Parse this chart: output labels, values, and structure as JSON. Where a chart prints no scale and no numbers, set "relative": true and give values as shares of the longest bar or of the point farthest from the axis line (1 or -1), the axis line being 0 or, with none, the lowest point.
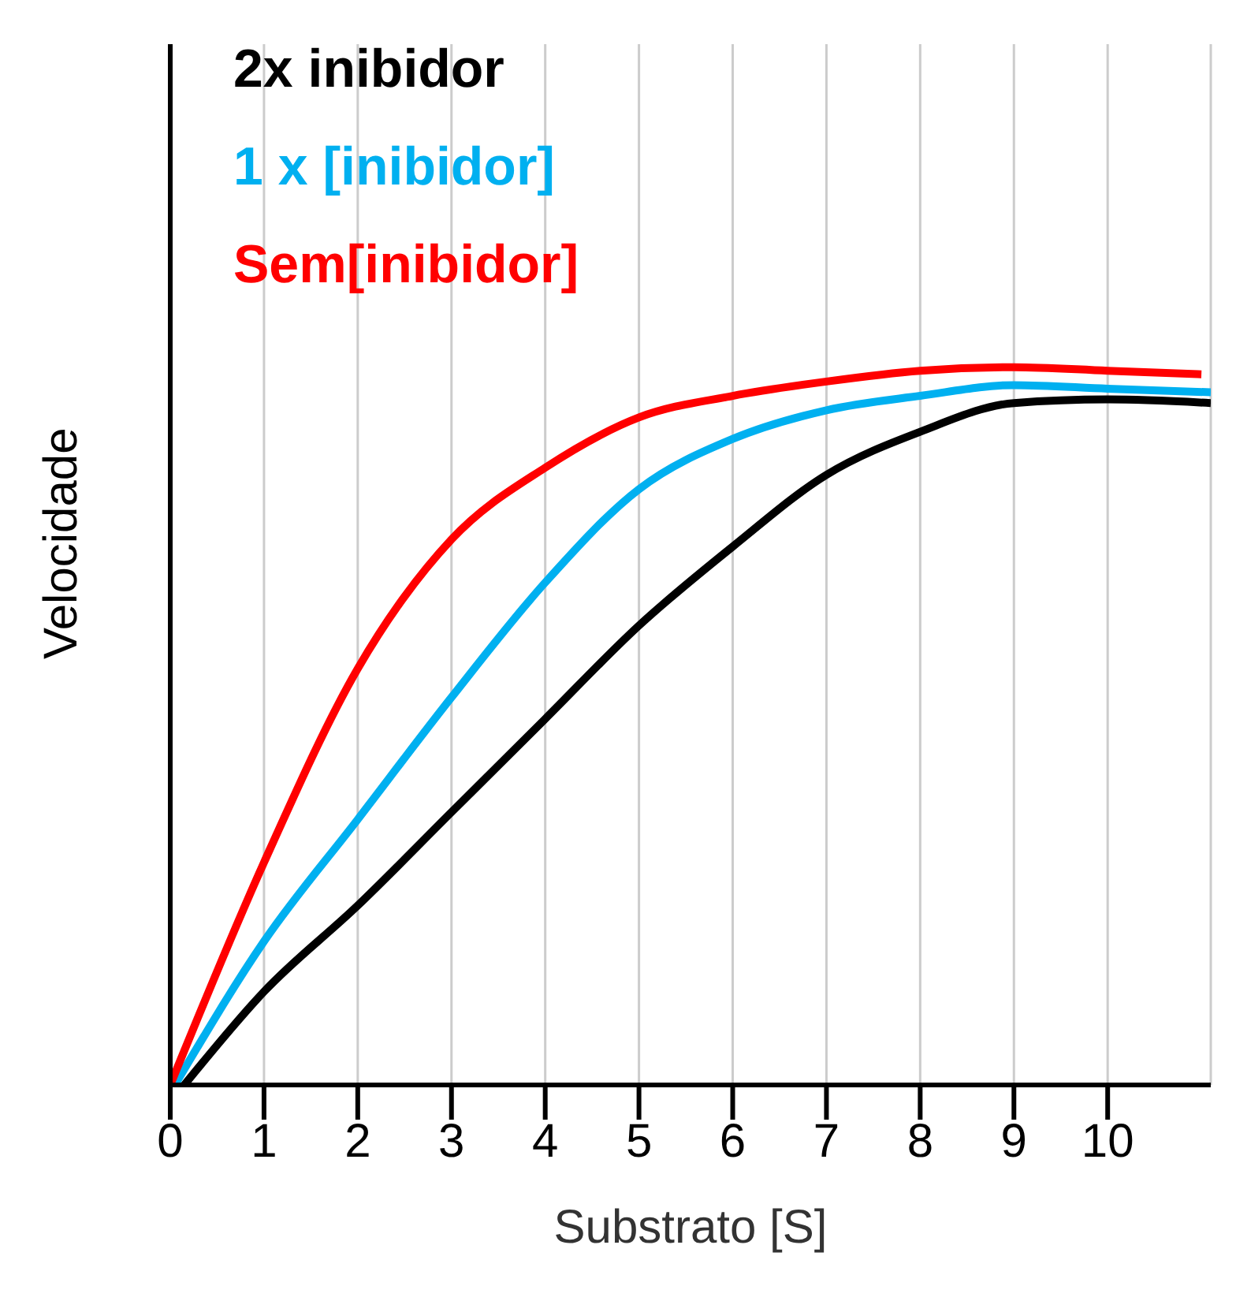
{
  "chart_data": {
    "type": "line",
    "relative": true,
    "xlabel": "Substrato [S]",
    "ylabel": "Velocidade",
    "xlim": [
      0,
      11.1
    ],
    "xticks": [
      0,
      1,
      2,
      3,
      4,
      5,
      6,
      7,
      8,
      9,
      10
    ],
    "grid": true,
    "legend": "top left",
    "marker": "none",
    "line_style": "solid",
    "series": [
      {
        "name": "2x inibidor",
        "color": "#000000",
        "x": [
          0.15,
          1,
          2,
          3,
          4,
          5,
          6,
          7,
          8,
          9,
          10,
          11.1
        ],
        "values": [
          0,
          0.13,
          0.25,
          0.38,
          0.51,
          0.64,
          0.75,
          0.85,
          0.91,
          0.95,
          0.955,
          0.95
        ]
      },
      {
        "name": "1 x [inibidor]",
        "color": "#00b0f0",
        "x": [
          0.05,
          1,
          2,
          3,
          4,
          5,
          6,
          7,
          8,
          9,
          10,
          11.1
        ],
        "values": [
          0,
          0.2,
          0.37,
          0.54,
          0.7,
          0.83,
          0.9,
          0.94,
          0.96,
          0.975,
          0.97,
          0.965
        ]
      },
      {
        "name": "Sem[inibidor]",
        "color": "#ff0000",
        "x": [
          0,
          1,
          2,
          3,
          4,
          5,
          6,
          7,
          8,
          9,
          10,
          11
        ],
        "values": [
          0,
          0.31,
          0.58,
          0.76,
          0.86,
          0.93,
          0.96,
          0.98,
          0.995,
          1,
          0.995,
          0.99
        ]
      }
    ]
  }
}
